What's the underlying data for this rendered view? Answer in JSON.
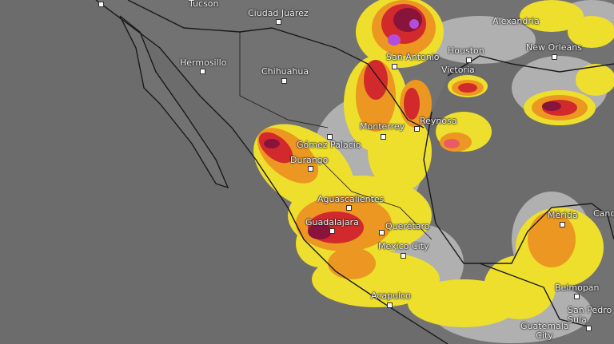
{
  "map": {
    "type": "weather radar",
    "colors": {
      "background": "#6c6c6c",
      "border": "#1a1a1a",
      "light_precip": "#b4b4b4",
      "moderate": "#f5e52a",
      "heavy": "#f39a1e",
      "intense": "#d8262a",
      "extreme": "#8a0f3a",
      "severe": "#b74de0"
    },
    "cities": [
      {
        "name": "Tucson"
      },
      {
        "name": "Ciudad Juárez"
      },
      {
        "name": "Alexandria"
      },
      {
        "name": "Hermosillo"
      },
      {
        "name": "Chihuahua"
      },
      {
        "name": "San Antonio"
      },
      {
        "name": "Houston"
      },
      {
        "name": "New Orleans"
      },
      {
        "name": "Victoria"
      },
      {
        "name": "Monterrey"
      },
      {
        "name": "Reynosa"
      },
      {
        "name": "Gómez Palacio"
      },
      {
        "name": "Durango"
      },
      {
        "name": "Aguascalientes"
      },
      {
        "name": "Guadalajara"
      },
      {
        "name": "Querétaro"
      },
      {
        "name": "Mexico City"
      },
      {
        "name": "Acapulco"
      },
      {
        "name": "Mérida"
      },
      {
        "name": "Canc"
      },
      {
        "name": "Belmopan"
      },
      {
        "name": "San Pedro Sula"
      },
      {
        "name": "Guatemala City"
      }
    ]
  }
}
